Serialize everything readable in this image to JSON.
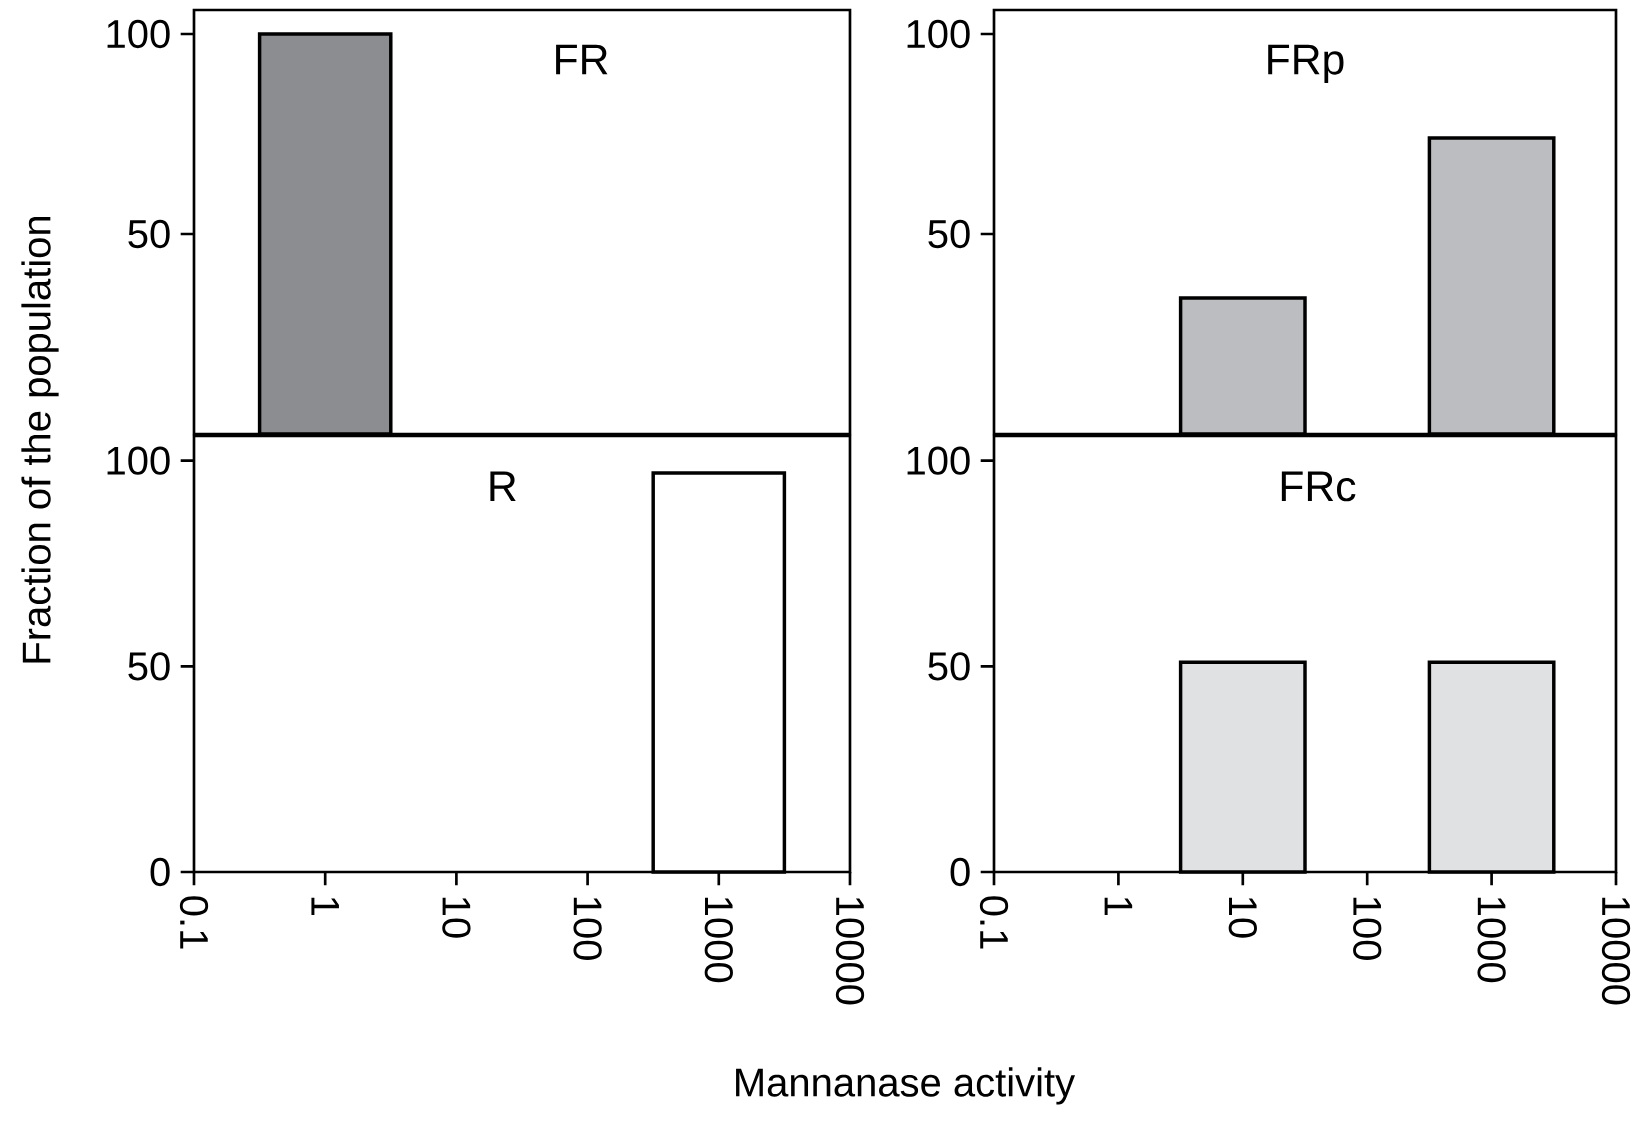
{
  "chart_data": [
    {
      "type": "bar",
      "title": "FR",
      "ylabel": "Fraction of the population",
      "log": "x",
      "x": [
        1
      ],
      "values": [
        100
      ],
      "color": "#8c8d90",
      "xlim": [
        0.1,
        10000
      ],
      "xticks": [
        0.1,
        1,
        10,
        100,
        1000,
        10000
      ],
      "ylim": [
        0,
        106
      ],
      "yticks": [
        50,
        100
      ],
      "tick_labels": "y"
    },
    {
      "type": "bar",
      "title": "FRp",
      "log": "x",
      "x": [
        10,
        1000
      ],
      "values": [
        34,
        74
      ],
      "color": "#bcbdc0",
      "xlim": [
        0.1,
        10000
      ],
      "xticks": [
        0.1,
        1,
        10,
        100,
        1000,
        10000
      ],
      "ylim": [
        0,
        106
      ],
      "yticks": [
        50,
        100
      ],
      "tick_labels": "y"
    },
    {
      "type": "bar",
      "title": "R",
      "xlabel": "Mannanase activity",
      "log": "x",
      "x": [
        1000
      ],
      "values": [
        97
      ],
      "color": "#ffffff",
      "xlim": [
        0.1,
        10000
      ],
      "xticks": [
        0.1,
        1,
        10,
        100,
        1000,
        10000
      ],
      "ylim": [
        0,
        106
      ],
      "yticks": [
        0,
        50,
        100
      ]
    },
    {
      "type": "bar",
      "title": "FRc",
      "log": "x",
      "x": [
        10,
        1000
      ],
      "values": [
        51,
        51
      ],
      "color": "#e0e1e3",
      "xlim": [
        0.1,
        10000
      ],
      "xticks": [
        0.1,
        1,
        10,
        100,
        1000,
        10000
      ],
      "ylim": [
        0,
        106
      ],
      "yticks": [
        0,
        50,
        100
      ]
    }
  ]
}
